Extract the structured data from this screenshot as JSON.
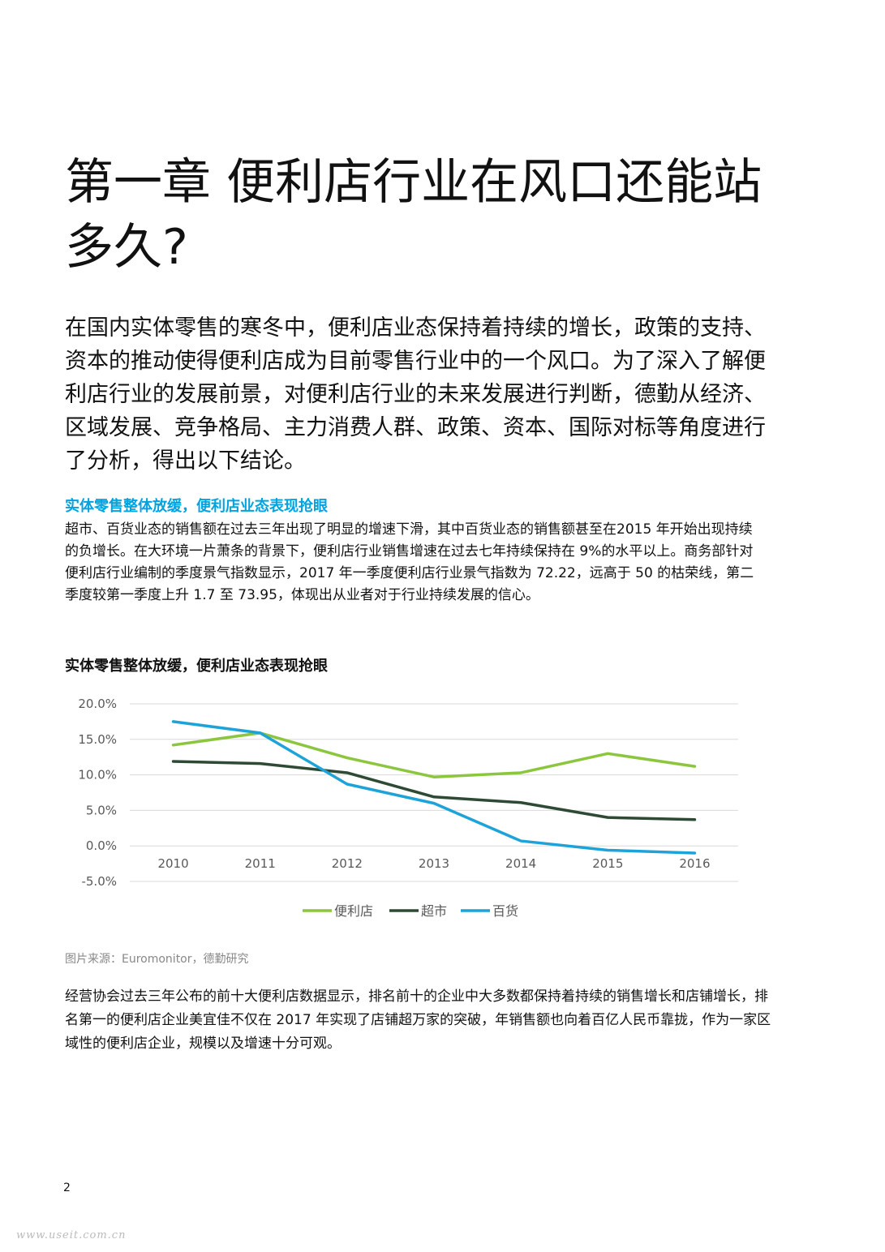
{
  "chapter": {
    "title": "第一章 便利店行业在风口还能站多久?"
  },
  "intro": {
    "text": "在国内实体零售的寒冬中，便利店业态保持着持续的增长，政策的支持、资本的推动使得便利店成为目前零售行业中的一个风口。为了深入了解便利店行业的发展前景，对便利店行业的未来发展进行判断，德勤从经济、区域发展、竞争格局、主力消费人群、政策、资本、国际对标等角度进行了分析，得出以下结论。"
  },
  "section": {
    "heading": "实体零售整体放缓，便利店业态表现抢眼",
    "body": "超市、百货业态的销售额在过去三年出现了明显的增速下滑，其中百货业态的销售额甚至在2015 年开始出现持续的负增长。在大环境一片萧条的背景下，便利店行业销售增速在过去七年持续保持在 9%的水平以上。商务部针对便利店行业编制的季度景气指数显示，2017 年一季度便利店行业景气指数为 72.22，远高于 50 的枯荣线，第二季度较第一季度上升 1.7 至 73.95，体现出从业者对于行业持续发展的信心。"
  },
  "chart_data": {
    "type": "line",
    "title": "实体零售整体放缓，便利店业态表现抢眼",
    "categories": [
      "2010",
      "2011",
      "2012",
      "2013",
      "2014",
      "2015",
      "2016"
    ],
    "series": [
      {
        "name": "便利店",
        "color": "#8cc63f",
        "values": [
          14.2,
          15.9,
          12.4,
          9.7,
          10.3,
          13.0,
          11.2
        ]
      },
      {
        "name": "超市",
        "color": "#2e4a34",
        "values": [
          11.9,
          11.6,
          10.3,
          6.9,
          6.1,
          4.0,
          3.7
        ]
      },
      {
        "name": "百货",
        "color": "#1ea3d9",
        "values": [
          17.5,
          15.9,
          8.7,
          6.0,
          0.7,
          -0.6,
          -1.0
        ]
      }
    ],
    "yticks": [
      "20.0%",
      "15.0%",
      "10.0%",
      "5.0%",
      "0.0%",
      "-5.0%"
    ],
    "ylim": [
      -5,
      20
    ],
    "xlabel": "",
    "ylabel": "",
    "grid": true,
    "legend": "bottom"
  },
  "source": {
    "text": "图片来源：Euromonitor，德勤研究"
  },
  "closing": {
    "text": "经营协会过去三年公布的前十大便利店数据显示，排名前十的企业中大多数都保持着持续的销售增长和店铺增长，排名第一的便利店企业美宜佳不仅在 2017 年实现了店铺超万家的突破，年销售额也向着百亿人民币靠拢，作为一家区域性的便利店企业，规模以及增速十分可观。"
  },
  "page": {
    "number": "2",
    "watermark": "www.useit.com.cn"
  }
}
